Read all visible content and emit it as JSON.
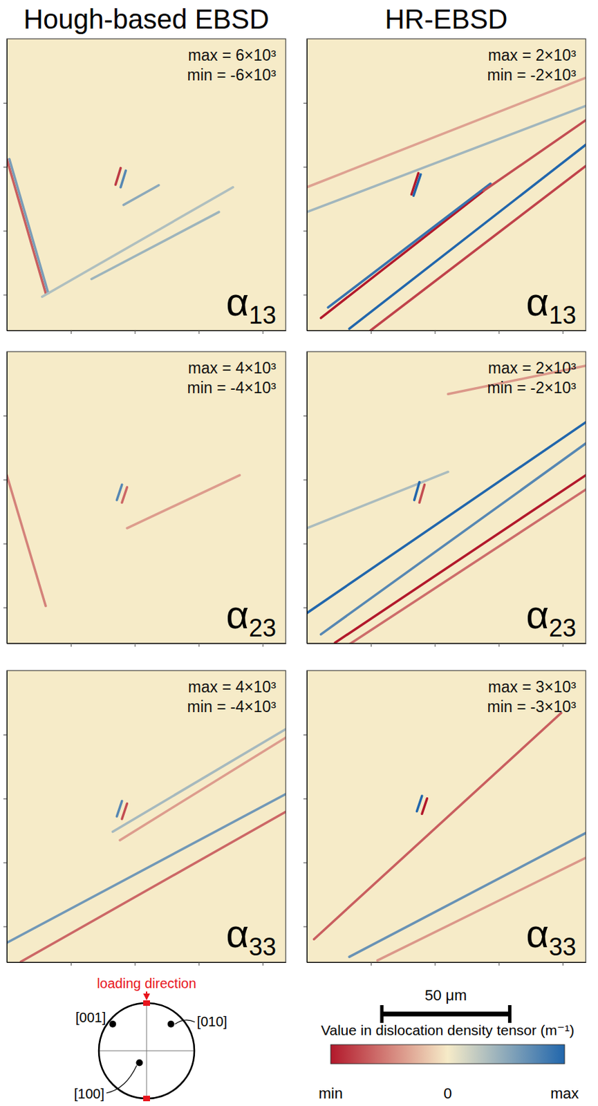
{
  "column_titles": [
    "Hough-based EBSD",
    "HR-EBSD"
  ],
  "chart_data": [
    {
      "type": "heatmap",
      "title": "α13",
      "xlim": [
        0,
        109
      ],
      "ylim": [
        0,
        114
      ],
      "xticks": [
        25,
        50,
        75,
        100
      ],
      "yticks": [
        25,
        50,
        75,
        100
      ],
      "tick_labels": false,
      "color_range": [
        {
          "value": 6000,
          "label": "max = 6×10³"
        },
        {
          "value": -6000,
          "label": "min = -6×10³"
        }
      ],
      "bands": [
        {
          "x": [
            0,
            15.2
          ],
          "y": [
            47,
            99.4
          ],
          "value": -4000
        },
        {
          "x": [
            1,
            16.2
          ],
          "y": [
            47,
            99.4
          ],
          "value": 3500
        },
        {
          "x": [
            13.8,
            88.4
          ],
          "y": [
            100.8,
            58
          ],
          "value": 2000
        },
        {
          "x": [
            33.1,
            82.9
          ],
          "y": [
            93.9,
            67.7
          ],
          "value": 2500
        },
        {
          "x": [
            45.6,
            59.4
          ],
          "y": [
            64.9,
            57.2
          ],
          "value": 3000
        },
        {
          "x": [
            42.5,
            44.5
          ],
          "y": [
            57,
            50.5
          ],
          "value": -5000
        },
        {
          "x": [
            44.5,
            46.5
          ],
          "y": [
            58,
            51.5
          ],
          "value": 4500
        }
      ]
    },
    {
      "type": "heatmap",
      "title": "α13",
      "xlim": [
        0,
        109
      ],
      "ylim": [
        0,
        114
      ],
      "xticks": [
        25,
        50,
        75,
        100
      ],
      "yticks": [
        25,
        50,
        75,
        100
      ],
      "tick_labels": false,
      "color_range": [
        {
          "value": 2000,
          "label": "max = 2×10³"
        },
        {
          "value": -2000,
          "label": "min = -2×10³"
        }
      ],
      "bands": [
        {
          "x": [
            5.5,
            69.1
          ],
          "y": [
            109.1,
            59.4
          ],
          "value": -2000
        },
        {
          "x": [
            8.3,
            71.8
          ],
          "y": [
            105,
            56.6
          ],
          "value": 1800
        },
        {
          "x": [
            69.1,
            109
          ],
          "y": [
            59.4,
            31.8
          ],
          "value": -1500
        },
        {
          "x": [
            16.6,
            109
          ],
          "y": [
            113.3,
            41.4
          ],
          "value": 2000
        },
        {
          "x": [
            24.9,
            109
          ],
          "y": [
            114,
            49.7
          ],
          "value": -1600
        },
        {
          "x": [
            0,
            109
          ],
          "y": [
            58,
            15.2
          ],
          "value": -700
        },
        {
          "x": [
            0,
            109
          ],
          "y": [
            67.7,
            26.2
          ],
          "value": 800
        },
        {
          "x": [
            40.9,
            43.6
          ],
          "y": [
            60.8,
            52.5
          ],
          "value": -2000
        },
        {
          "x": [
            41.7,
            44.5
          ],
          "y": [
            61.3,
            53
          ],
          "value": 2000
        }
      ]
    },
    {
      "type": "heatmap",
      "title": "α23",
      "xlim": [
        0,
        109
      ],
      "ylim": [
        0,
        114
      ],
      "xticks": [
        25,
        50,
        75,
        100
      ],
      "yticks": [
        25,
        50,
        75,
        100
      ],
      "tick_labels": false,
      "color_range": [
        {
          "value": 4000,
          "label": "max = 4×10³"
        },
        {
          "value": -4000,
          "label": "min = -4×10³"
        }
      ],
      "bands": [
        {
          "x": [
            0,
            15.2
          ],
          "y": [
            48.3,
            99.4
          ],
          "value": -2000
        },
        {
          "x": [
            43,
            45
          ],
          "y": [
            58,
            52
          ],
          "value": 3000
        },
        {
          "x": [
            45,
            47
          ],
          "y": [
            59,
            53
          ],
          "value": -2500
        },
        {
          "x": [
            47,
            91
          ],
          "y": [
            69,
            48.3
          ],
          "value": -1500
        }
      ]
    },
    {
      "type": "heatmap",
      "title": "α23",
      "xlim": [
        0,
        109
      ],
      "ylim": [
        0,
        114
      ],
      "xticks": [
        25,
        50,
        75,
        100
      ],
      "yticks": [
        25,
        50,
        75,
        100
      ],
      "tick_labels": false,
      "color_range": [
        {
          "value": 2000,
          "label": "max = 2×10³"
        },
        {
          "value": -2000,
          "label": "min = -2×10³"
        }
      ],
      "bands": [
        {
          "x": [
            0,
            109
          ],
          "y": [
            102.2,
            27.6
          ],
          "value": 2000
        },
        {
          "x": [
            5.5,
            109
          ],
          "y": [
            110.5,
            35.9
          ],
          "value": 1500
        },
        {
          "x": [
            11,
            109
          ],
          "y": [
            113.8,
            48.3
          ],
          "value": -2000
        },
        {
          "x": [
            16.6,
            109
          ],
          "y": [
            114.4,
            53.9
          ],
          "value": -1200
        },
        {
          "x": [
            0,
            55.2
          ],
          "y": [
            69,
            47
          ],
          "value": 700
        },
        {
          "x": [
            55.2,
            109
          ],
          "y": [
            16.6,
            5.5
          ],
          "value": -800
        },
        {
          "x": [
            42,
            44
          ],
          "y": [
            58,
            51
          ],
          "value": 2000
        },
        {
          "x": [
            44,
            46
          ],
          "y": [
            59,
            52
          ],
          "value": -1500
        }
      ]
    },
    {
      "type": "heatmap",
      "title": "α33",
      "xlim": [
        0,
        109
      ],
      "ylim": [
        0,
        114
      ],
      "xticks": [
        25,
        50,
        75,
        100
      ],
      "yticks": [
        25,
        50,
        75,
        100
      ],
      "tick_labels": false,
      "color_range": [
        {
          "value": 4000,
          "label": "max = 4×10³"
        },
        {
          "value": -4000,
          "label": "min = -4×10³"
        }
      ],
      "bands": [
        {
          "x": [
            0,
            109
          ],
          "y": [
            106.4,
            48.3
          ],
          "value": 2500
        },
        {
          "x": [
            5.5,
            109
          ],
          "y": [
            113.8,
            55.2
          ],
          "value": -2500
        },
        {
          "x": [
            44.2,
            109
          ],
          "y": [
            66.3,
            26.2
          ],
          "value": -1500
        },
        {
          "x": [
            41.4,
            109
          ],
          "y": [
            63,
            22.9
          ],
          "value": 1500
        },
        {
          "x": [
            43,
            45
          ],
          "y": [
            57,
            51
          ],
          "value": 3000
        },
        {
          "x": [
            45,
            47
          ],
          "y": [
            58,
            52
          ],
          "value": -3000
        }
      ]
    },
    {
      "type": "heatmap",
      "title": "α33",
      "xlim": [
        0,
        109
      ],
      "ylim": [
        0,
        114
      ],
      "xticks": [
        25,
        50,
        75,
        100
      ],
      "yticks": [
        25,
        50,
        75,
        100
      ],
      "tick_labels": false,
      "color_range": [
        {
          "value": 3000,
          "label": "max = 3×10³"
        },
        {
          "value": -3000,
          "label": "min = -3×10³"
        }
      ],
      "bands": [
        {
          "x": [
            2.8,
            99.4
          ],
          "y": [
            105,
            16.6
          ],
          "value": -2000
        },
        {
          "x": [
            16.6,
            109
          ],
          "y": [
            111.9,
            63.5
          ],
          "value": 2000
        },
        {
          "x": [
            27.6,
            109
          ],
          "y": [
            113.3,
            73.2
          ],
          "value": -1200
        },
        {
          "x": [
            43,
            45
          ],
          "y": [
            55,
            49
          ],
          "value": 3000
        },
        {
          "x": [
            45,
            47
          ],
          "y": [
            56,
            50
          ],
          "value": -3000
        }
      ]
    }
  ],
  "colorbar": {
    "title": "Value in dislocation density tensor (m⁻¹)",
    "lim": [
      -1,
      1
    ],
    "ticks": [
      {
        "value": -1,
        "label": "min"
      },
      {
        "value": 0,
        "label": "0"
      },
      {
        "value": 1,
        "label": "max"
      }
    ],
    "colors": [
      "#b2182b",
      "#f6ebc8",
      "#2166ac"
    ]
  },
  "scale_bar": {
    "value": 50,
    "label": "50 μm"
  },
  "pole_figure": {
    "title": "loading direction",
    "poles": [
      {
        "label": "[001]",
        "x": -0.71,
        "y": 0.56
      },
      {
        "label": "[010]",
        "x": 0.51,
        "y": 0.56
      },
      {
        "label": "[100]",
        "x": -0.15,
        "y": -0.25
      }
    ]
  }
}
